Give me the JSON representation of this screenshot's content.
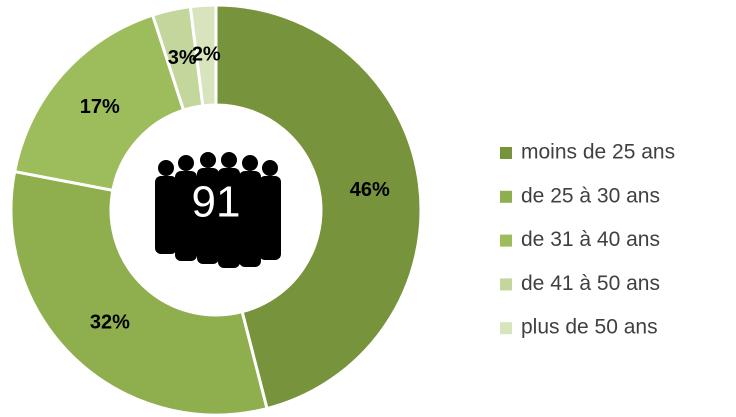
{
  "chart_data": {
    "type": "donut",
    "center_label": "91",
    "categories": [
      "moins de 25 ans",
      "de 25 à 30 ans",
      "de 31 à 40 ans",
      "de 41 à 50 ans",
      "plus de 50 ans"
    ],
    "values": [
      46,
      32,
      17,
      3,
      2
    ],
    "value_labels": [
      "46%",
      "32%",
      "17%",
      "3%",
      "2%"
    ],
    "colors": [
      "#77933c",
      "#8fae4e",
      "#9dbd5c",
      "#c3d69b",
      "#d7e4bd"
    ],
    "legend": "right"
  }
}
